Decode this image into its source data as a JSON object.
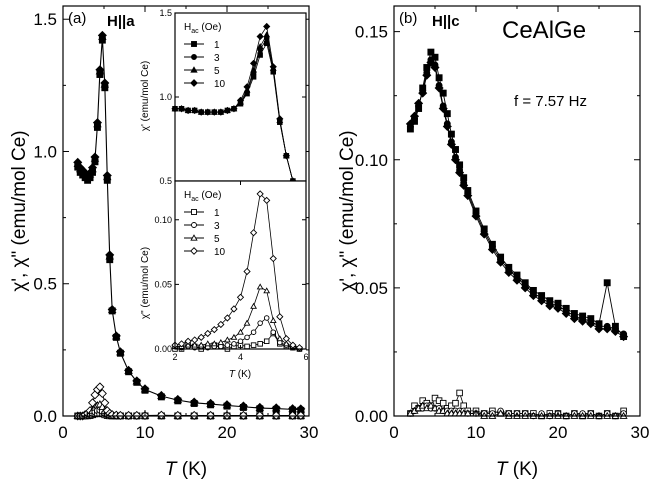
{
  "chart_data": [
    {
      "id": "a",
      "type": "scatter",
      "panel_label": "(a)",
      "field_label": "H||a",
      "xlabel_var": "T",
      "xlabel_unit": " (K)",
      "ylabel": "χ', χ\" (emu/mol Ce)",
      "xlim": [
        0,
        30
      ],
      "ylim": [
        0,
        1.55
      ],
      "xticks": [
        0,
        10,
        20,
        30
      ],
      "yticks": [
        0.0,
        0.5,
        1.0,
        1.5
      ],
      "ytick_labels": [
        "0.0",
        "0.5",
        "1.0",
        "1.5"
      ],
      "x": [
        1.8,
        2.1,
        2.4,
        2.7,
        3.0,
        3.3,
        3.6,
        3.9,
        4.2,
        4.5,
        4.8,
        5.1,
        5.4,
        5.7,
        6.0,
        6.5,
        7,
        8,
        9,
        10,
        12,
        14,
        16,
        18,
        20,
        22,
        24,
        26,
        28,
        29
      ],
      "chi_real": [
        0.95,
        0.93,
        0.92,
        0.91,
        0.9,
        0.91,
        0.93,
        0.97,
        1.1,
        1.3,
        1.43,
        1.25,
        0.9,
        0.6,
        0.4,
        0.3,
        0.24,
        0.17,
        0.13,
        0.1,
        0.075,
        0.06,
        0.05,
        0.045,
        0.04,
        0.035,
        0.03,
        0.028,
        0.025,
        0.024
      ],
      "chi_imag": [
        0.0,
        0.0,
        0.0,
        0.005,
        0.01,
        0.02,
        0.05,
        0.08,
        0.1,
        0.11,
        0.085,
        0.05,
        0.02,
        0.01,
        0.005,
        0.003,
        0.002,
        0.002,
        0.002,
        0.002,
        0.003,
        0.002,
        0.002,
        0.002,
        0.002,
        0.002,
        0.002,
        0.002,
        0.002,
        0.002
      ],
      "inset_top": {
        "legend_title": "H",
        "legend_title_sub": "ac",
        "legend_title_rest": " (Oe)",
        "ylabel": "χ' (emu/mol Ce)",
        "xlim": [
          2,
          6
        ],
        "ylim": [
          0.5,
          1.5
        ],
        "yticks": [
          0.5,
          1.0,
          1.5
        ],
        "ytick_labels": [
          "0.5",
          "1.0",
          "1.5"
        ],
        "x": [
          2.0,
          2.2,
          2.4,
          2.6,
          2.8,
          3.0,
          3.2,
          3.4,
          3.6,
          3.8,
          4.0,
          4.2,
          4.4,
          4.6,
          4.8,
          5.0,
          5.2,
          5.4,
          5.6,
          5.8
        ],
        "series": [
          {
            "name": "1",
            "marker": "square",
            "values": [
              0.93,
              0.93,
              0.92,
              0.92,
              0.91,
              0.91,
              0.91,
              0.91,
              0.92,
              0.93,
              0.96,
              1.02,
              1.12,
              1.25,
              1.32,
              1.15,
              0.85,
              0.65,
              0.5,
              0.42
            ]
          },
          {
            "name": "3",
            "marker": "circle",
            "values": [
              0.93,
              0.93,
              0.92,
              0.92,
              0.91,
              0.91,
              0.91,
              0.91,
              0.92,
              0.93,
              0.96,
              1.03,
              1.14,
              1.28,
              1.35,
              1.16,
              0.86,
              0.65,
              0.5,
              0.42
            ]
          },
          {
            "name": "5",
            "marker": "triangle",
            "values": [
              0.93,
              0.93,
              0.92,
              0.92,
              0.91,
              0.91,
              0.91,
              0.91,
              0.92,
              0.93,
              0.97,
              1.04,
              1.16,
              1.3,
              1.37,
              1.17,
              0.86,
              0.65,
              0.5,
              0.42
            ]
          },
          {
            "name": "10",
            "marker": "diamond",
            "values": [
              0.93,
              0.93,
              0.92,
              0.92,
              0.91,
              0.91,
              0.91,
              0.91,
              0.92,
              0.93,
              0.98,
              1.06,
              1.2,
              1.36,
              1.42,
              1.18,
              0.87,
              0.65,
              0.5,
              0.42
            ]
          }
        ]
      },
      "inset_bottom": {
        "legend_title": "H",
        "legend_title_sub": "ac",
        "legend_title_rest": " (Oe)",
        "ylabel": "χ\" (emu/mol Ce)",
        "xlabel_var": "T",
        "xlabel_unit": " (K)",
        "xlim": [
          2,
          6
        ],
        "ylim": [
          0,
          0.13
        ],
        "xticks": [
          2,
          4,
          6
        ],
        "yticks": [
          0.0,
          0.05,
          0.1
        ],
        "ytick_labels": [
          "0.00",
          "0.05",
          "0.10"
        ],
        "x": [
          2.0,
          2.2,
          2.4,
          2.6,
          2.8,
          3.0,
          3.2,
          3.4,
          3.6,
          3.8,
          4.0,
          4.2,
          4.4,
          4.6,
          4.8,
          5.0,
          5.2,
          5.4,
          5.6,
          5.8
        ],
        "series": [
          {
            "name": "1",
            "marker": "square",
            "values": [
              0.0,
              0.0,
              0.003,
              0.002,
              0.0,
              0.002,
              0.003,
              0.002,
              0.0,
              0.002,
              0.003,
              0.002,
              0.003,
              0.004,
              0.006,
              0.012,
              0.004,
              0.002,
              0.001,
              0.0
            ]
          },
          {
            "name": "3",
            "marker": "circle",
            "values": [
              0.002,
              0.001,
              0.002,
              0.001,
              0.002,
              0.001,
              0.002,
              0.002,
              0.003,
              0.004,
              0.006,
              0.009,
              0.013,
              0.02,
              0.024,
              0.013,
              0.005,
              0.003,
              0.001,
              0.0
            ]
          },
          {
            "name": "5",
            "marker": "triangle",
            "values": [
              0.002,
              0.002,
              0.003,
              0.003,
              0.003,
              0.004,
              0.004,
              0.005,
              0.007,
              0.009,
              0.013,
              0.02,
              0.033,
              0.048,
              0.045,
              0.022,
              0.008,
              0.004,
              0.002,
              0.001
            ]
          },
          {
            "name": "10",
            "marker": "diamond",
            "values": [
              0.003,
              0.004,
              0.006,
              0.007,
              0.009,
              0.012,
              0.015,
              0.019,
              0.024,
              0.031,
              0.04,
              0.06,
              0.09,
              0.12,
              0.115,
              0.07,
              0.025,
              0.008,
              0.003,
              0.001
            ]
          }
        ]
      }
    },
    {
      "id": "b",
      "type": "scatter",
      "panel_label": "(b)",
      "field_label": "H||c",
      "compound": "CeAlGe",
      "frequency": "f = 7.57 Hz",
      "xlabel_var": "T",
      "xlabel_unit": " (K)",
      "ylabel": "χ', χ\" (emu/mol Ce)",
      "xlim": [
        0,
        30
      ],
      "ylim": [
        0,
        0.16
      ],
      "xticks": [
        0,
        10,
        20,
        30
      ],
      "yticks": [
        0.0,
        0.05,
        0.1,
        0.15
      ],
      "ytick_labels": [
        "0.00",
        "0.05",
        "0.10",
        "0.15"
      ],
      "x": [
        2.0,
        2.5,
        3.0,
        3.5,
        4.0,
        4.5,
        5.0,
        5.5,
        6.0,
        6.5,
        7.0,
        7.5,
        8.0,
        8.5,
        9.0,
        10,
        11,
        12,
        13,
        14,
        15,
        16,
        17,
        18,
        19,
        20,
        21,
        22,
        23,
        24,
        25,
        26,
        27,
        28
      ],
      "chi_real_square": [
        0.112,
        0.115,
        0.12,
        0.128,
        0.136,
        0.142,
        0.14,
        0.132,
        0.126,
        0.118,
        0.11,
        0.104,
        0.098,
        0.093,
        0.088,
        0.08,
        0.073,
        0.067,
        0.062,
        0.058,
        0.055,
        0.052,
        0.049,
        0.047,
        0.045,
        0.044,
        0.042,
        0.04,
        0.039,
        0.038,
        0.036,
        0.052,
        0.035,
        0.031
      ],
      "chi_real_circle": [
        0.113,
        0.116,
        0.121,
        0.127,
        0.134,
        0.139,
        0.137,
        0.129,
        0.121,
        0.114,
        0.107,
        0.101,
        0.096,
        0.091,
        0.087,
        0.079,
        0.072,
        0.066,
        0.061,
        0.057,
        0.054,
        0.051,
        0.048,
        0.046,
        0.044,
        0.043,
        0.041,
        0.039,
        0.038,
        0.037,
        0.035,
        0.035,
        0.034,
        0.032
      ],
      "chi_real_diamond": [
        0.114,
        0.117,
        0.122,
        0.126,
        0.133,
        0.138,
        0.136,
        0.128,
        0.12,
        0.113,
        0.106,
        0.1,
        0.095,
        0.09,
        0.086,
        0.078,
        0.071,
        0.065,
        0.06,
        0.056,
        0.053,
        0.05,
        0.047,
        0.045,
        0.043,
        0.042,
        0.04,
        0.038,
        0.037,
        0.036,
        0.034,
        0.034,
        0.033,
        0.031
      ],
      "chi_imag_square": [
        0.001,
        0.004,
        0.003,
        0.006,
        0.005,
        0.004,
        0.007,
        0.006,
        0.005,
        0.003,
        0.004,
        0.005,
        0.009,
        0.004,
        0.002,
        0.002,
        0.001,
        0.002,
        0.001,
        0.001,
        0.001,
        0.001,
        0.001,
        0.0,
        0.001,
        0.001,
        0.0,
        0.001,
        0.0,
        0.001,
        0.0,
        0.001,
        0.0,
        0.002
      ],
      "chi_imag_circle": [
        0.001,
        0.002,
        0.003,
        0.003,
        0.004,
        0.003,
        0.003,
        0.003,
        0.002,
        0.002,
        0.002,
        0.002,
        0.002,
        0.002,
        0.001,
        0.001,
        0.001,
        0.001,
        0.002,
        0.001,
        0.001,
        0.001,
        0.0,
        0.001,
        0.0,
        0.001,
        0.0,
        0.001,
        0.001,
        0.001,
        0.0,
        0.001,
        0.0,
        0.001
      ],
      "chi_imag_triangle": [
        0.001,
        0.002,
        0.003,
        0.004,
        0.003,
        0.004,
        0.003,
        0.002,
        0.002,
        0.001,
        0.001,
        0.001,
        0.001,
        0.001,
        0.001,
        0.001,
        0.0,
        0.0,
        0.001,
        0.0,
        0.0,
        0.0,
        0.0,
        0.0,
        0.0,
        0.0,
        0.0,
        0.0,
        0.0,
        0.0,
        0.0,
        0.0,
        0.0,
        0.0
      ]
    }
  ]
}
